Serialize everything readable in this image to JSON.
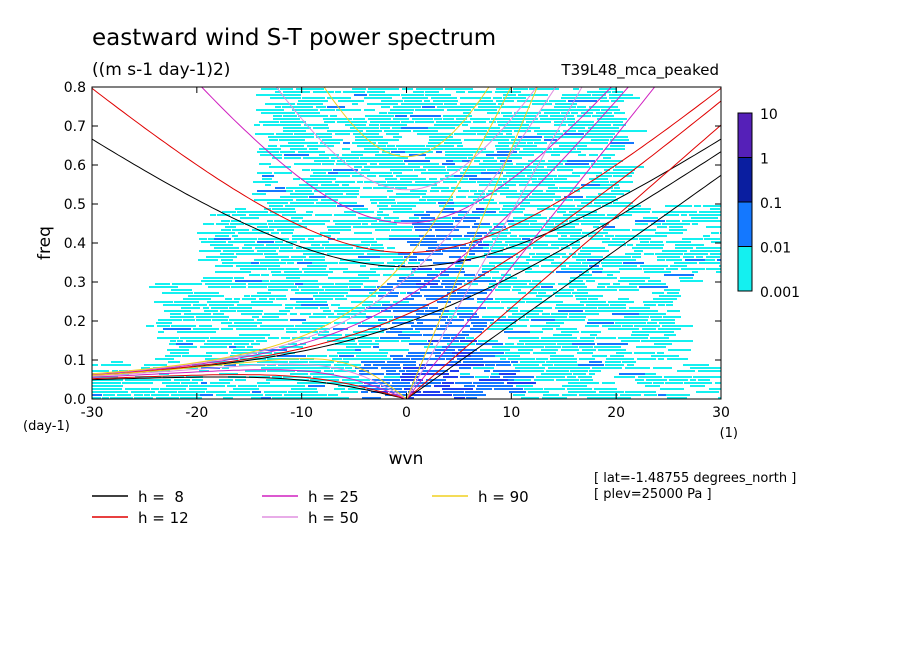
{
  "chart_data": {
    "type": "heatmap",
    "title": "eastward wind S-T power spectrum",
    "units": "((m s-1 day-1)2)",
    "case_name": "T39L48_mca_peaked",
    "xlabel": "wvn",
    "ylabel": "freq",
    "x_unit": "(1)",
    "y_unit": "(day-1)",
    "xlim": [
      -30,
      30
    ],
    "ylim": [
      0,
      0.8
    ],
    "x_ticks": [
      -30,
      -20,
      -10,
      0,
      10,
      20,
      30
    ],
    "y_ticks": [
      0.0,
      0.1,
      0.2,
      0.3,
      0.4,
      0.5,
      0.6,
      0.7,
      0.8
    ],
    "x_tick_labels": [
      "-30",
      "-20",
      "-10",
      "0",
      "10",
      "20",
      "30"
    ],
    "y_tick_labels": [
      "0.0",
      "0.1",
      "0.2",
      "0.3",
      "0.4",
      "0.5",
      "0.6",
      "0.7",
      "0.8"
    ],
    "colorbar": {
      "levels": [
        "10",
        "1",
        "0.1",
        "0.01",
        "0.001"
      ],
      "colors": [
        "#5520b8",
        "#0a1ea0",
        "#1e3cf0",
        "#1478ff",
        "#14f0f0"
      ]
    },
    "heatmap_description_bins": {
      "wvn": [
        -30,
        -25,
        -20,
        -15,
        -10,
        -7,
        -5,
        -3,
        -1,
        0,
        1,
        3,
        5,
        7,
        10,
        15,
        20,
        25,
        30
      ],
      "freq_bands": [
        {
          "freq": [
            0.0,
            0.1
          ],
          "level": [
            1,
            1,
            1,
            1,
            1,
            1,
            2,
            2,
            3,
            3,
            3,
            3,
            2,
            2,
            1,
            1,
            1,
            1,
            1
          ]
        },
        {
          "freq": [
            0.1,
            0.3
          ],
          "level": [
            0,
            1,
            1,
            1,
            1,
            1,
            1,
            2,
            2,
            2,
            2,
            2,
            2,
            1,
            1,
            1,
            1,
            0,
            0
          ]
        },
        {
          "freq": [
            0.3,
            0.5
          ],
          "level": [
            0,
            0,
            1,
            1,
            1,
            1,
            1,
            1,
            2,
            2,
            2,
            2,
            2,
            1,
            1,
            1,
            1,
            1,
            0
          ]
        },
        {
          "freq": [
            0.5,
            0.8
          ],
          "level": [
            0,
            0,
            0,
            1,
            1,
            1,
            1,
            1,
            1,
            1,
            1,
            1,
            1,
            1,
            1,
            1,
            0,
            0,
            0
          ]
        }
      ]
    },
    "series": [
      {
        "name": "h =  8",
        "color": "#000000",
        "equivalent_depth_m": 8
      },
      {
        "name": "h = 12",
        "color": "#e00000",
        "equivalent_depth_m": 12
      },
      {
        "name": "h = 25",
        "color": "#d020c0",
        "equivalent_depth_m": 25
      },
      {
        "name": "h = 50",
        "color": "#e090e0",
        "equivalent_depth_m": 50
      },
      {
        "name": "h = 90",
        "color": "#f0d020",
        "equivalent_depth_m": 90
      }
    ],
    "annotations": [
      "[ lat=-1.48755 degrees_north ]",
      "[ plev=25000 Pa ]"
    ]
  }
}
